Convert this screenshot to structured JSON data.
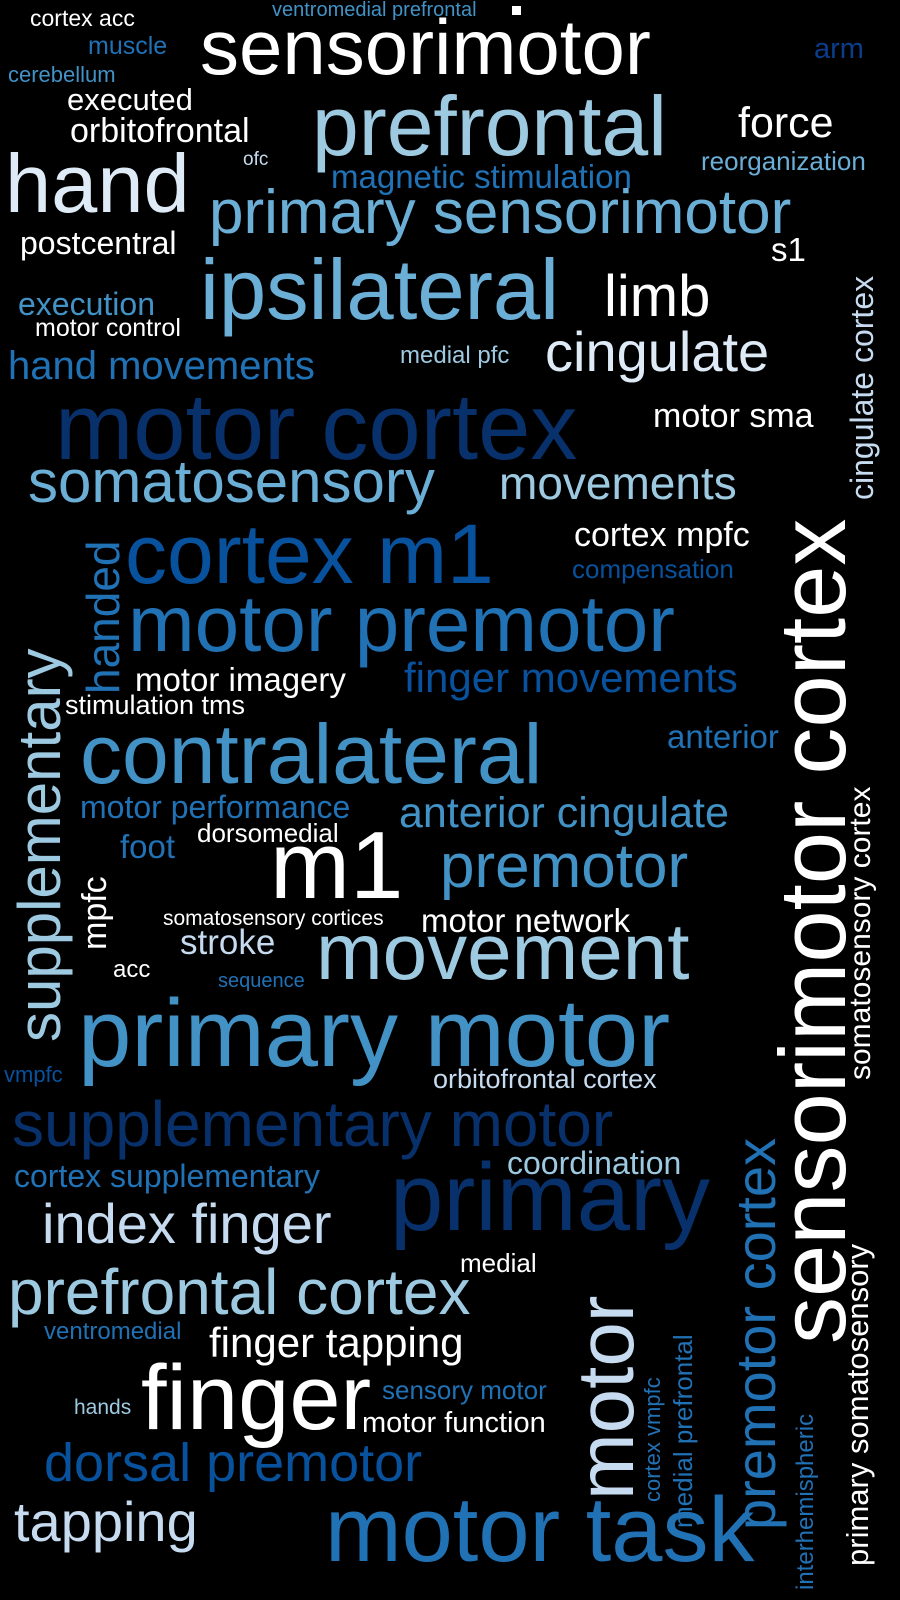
{
  "words": {
    "w1": "cortex acc",
    "w2": "ventromedial prefrontal",
    "w3": "sensorimotor",
    "w4": "muscle",
    "w5": "arm",
    "w6": "cerebellum",
    "w7": "executed",
    "w8": "prefrontal",
    "w9": "force",
    "w10": "orbitofrontal",
    "w11": "hand",
    "w12": "ofc",
    "w13": "magnetic stimulation",
    "w14": "reorganization",
    "w15": "primary sensorimotor",
    "w16": "postcentral",
    "w17": "s1",
    "w18": "ipsilateral",
    "w19": "limb",
    "w20": "execution",
    "w21": "motor control",
    "w22": "cingulate",
    "w23": "medial pfc",
    "w24": "hand movements",
    "w25": "motor cortex",
    "w26": "motor sma",
    "w27": "somatosensory",
    "w28": "movements",
    "w29": "cortex m1",
    "w30": "cortex mpfc",
    "w31": "compensation",
    "w32": "motor premotor",
    "w33": "motor imagery",
    "w34": "finger movements",
    "w35": "stimulation tms",
    "w36": "contralateral",
    "w37": "anterior",
    "w38": "motor performance",
    "w39": "anterior cingulate",
    "w40": "foot",
    "w41": "dorsomedial",
    "w42": "m1",
    "w43": "premotor",
    "w44": "somatosensory cortices",
    "w45": "motor network",
    "w46": "stroke",
    "w47": "movement",
    "w48": "acc",
    "w49": "sequence",
    "w50": "primary motor",
    "w51": "vmpfc",
    "w52": "orbitofrontal cortex",
    "w53": "supplementary motor",
    "w54": "coordination",
    "w55": "cortex supplementary",
    "w56": "primary",
    "w57": "index finger",
    "w58": "medial",
    "w59": "prefrontal cortex",
    "w60": "ventromedial",
    "w61": "finger tapping",
    "w62": "finger",
    "w63": "sensory motor",
    "w64": "hands",
    "w65": "motor function",
    "w66": "dorsal premotor",
    "w67": "tapping",
    "w68": "motor task",
    "w69": "supplementary",
    "w70": "handed",
    "w71": "mpfc",
    "w72": "cingulate cortex",
    "w73": "sensorimotor cortex",
    "w74": "somatosensory cortex",
    "w75": "premotor cortex",
    "w76": "motor",
    "w77": "cortex vmpfc",
    "w78": "medial prefrontal",
    "w79": "interhemispheric",
    "w80": "primary somatosensory"
  },
  "palette": {
    "background": "#000000",
    "white": "#ffffff",
    "pale": "#deebf7",
    "light": "#c6dbef",
    "light2": "#9ecae1",
    "mid": "#6baed6",
    "mid2": "#4292c6",
    "deep": "#2171b5",
    "deep2": "#08519c",
    "navy": "#08306b"
  }
}
